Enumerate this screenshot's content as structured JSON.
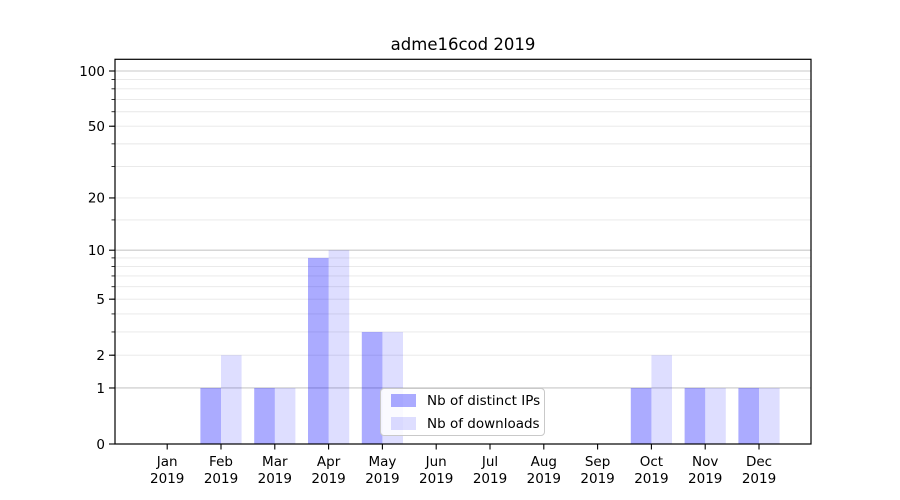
{
  "chart_data": {
    "type": "bar",
    "title": "adme16cod 2019",
    "categories": [
      "Jan",
      "Feb",
      "Mar",
      "Apr",
      "May",
      "Jun",
      "Jul",
      "Aug",
      "Sep",
      "Oct",
      "Nov",
      "Dec"
    ],
    "x_tick_year_line": "2019",
    "series": [
      {
        "name": "Nb of distinct IPs",
        "color": "rgba(0,0,255,0.33)",
        "values": [
          0,
          1,
          1,
          9,
          3,
          0,
          0,
          0,
          0,
          1,
          1,
          1
        ]
      },
      {
        "name": "Nb of downloads",
        "color": "rgba(0,0,255,0.13)",
        "values": [
          0,
          2,
          1,
          10,
          3,
          0,
          0,
          0,
          0,
          2,
          1,
          1
        ]
      }
    ],
    "yscale": "log1p",
    "y_ticks": [
      0,
      1,
      2,
      5,
      10,
      20,
      50,
      100
    ],
    "y_major_grid": [
      1,
      10,
      100
    ],
    "y_minor_grid": [
      2,
      3,
      4,
      5,
      6,
      7,
      8,
      9,
      15,
      20,
      30,
      40,
      50,
      60,
      70,
      80,
      90
    ],
    "ylim": [
      0,
      115
    ],
    "grid": true,
    "legend_position": "lower center",
    "colors": {
      "axis": "#000000",
      "text": "#000000",
      "grid_major": "#c8c8c8",
      "grid_minor": "#e7e7e7",
      "legend_border": "#c9c9c9",
      "background": "#ffffff"
    }
  }
}
